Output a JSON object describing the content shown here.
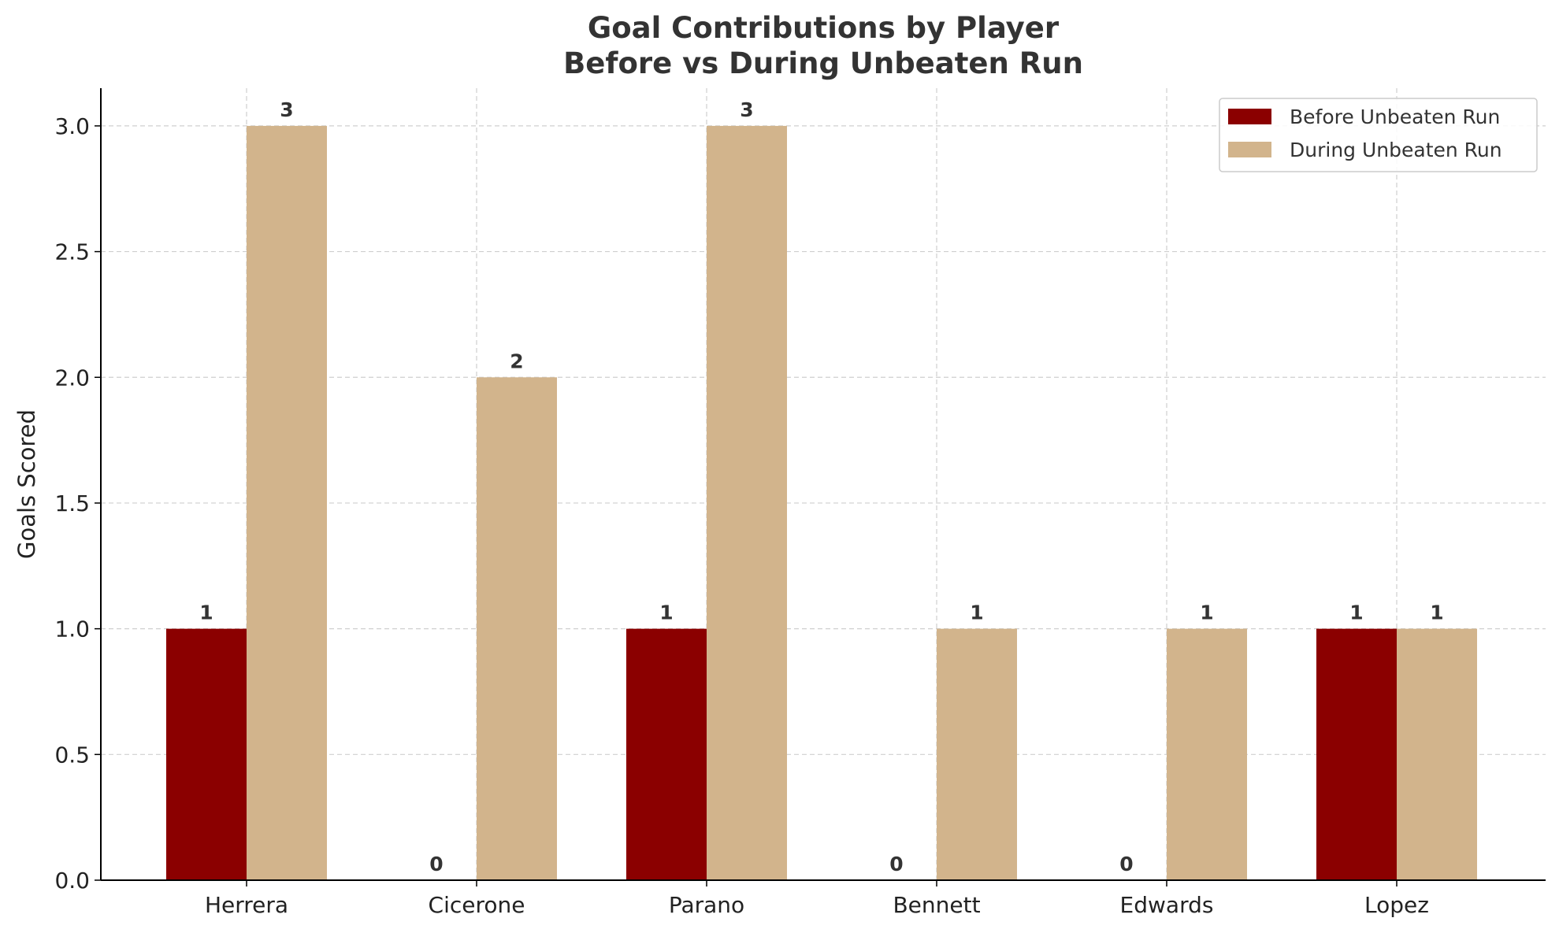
{
  "chart_data": {
    "type": "bar",
    "title_lines": [
      "Goal Contributions by Player",
      "Before vs During Unbeaten Run"
    ],
    "xlabel": "",
    "ylabel": "Goals Scored",
    "categories": [
      "Herrera",
      "Cicerone",
      "Parano",
      "Bennett",
      "Edwards",
      "Lopez"
    ],
    "series": [
      {
        "name": "Before Unbeaten Run",
        "values": [
          1,
          0,
          1,
          0,
          0,
          1
        ],
        "color": "#8b0000"
      },
      {
        "name": "During Unbeaten Run",
        "values": [
          3,
          2,
          3,
          1,
          1,
          1
        ],
        "color": "#d2b48c"
      }
    ],
    "ylim": [
      0,
      3.15
    ],
    "yticks": [
      0.0,
      0.5,
      1.0,
      1.5,
      2.0,
      2.5,
      3.0
    ],
    "grid": true,
    "legend_position": "top-right"
  }
}
